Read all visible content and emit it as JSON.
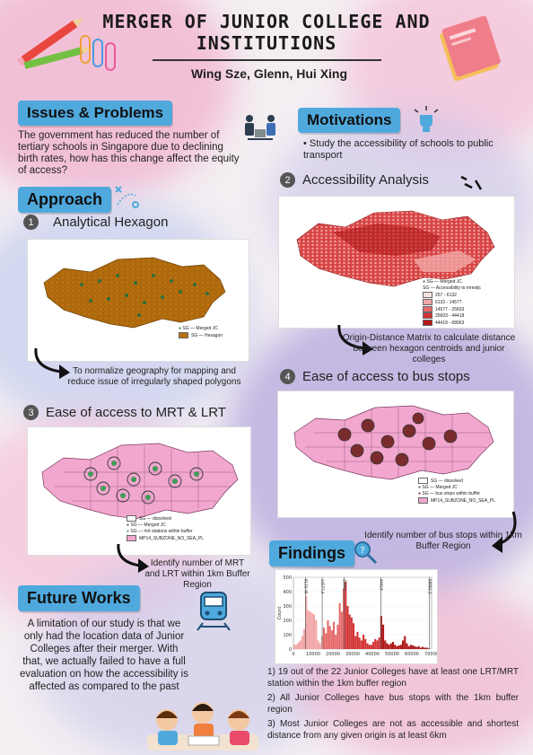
{
  "header": {
    "title": "MERGER OF JUNIOR COLLEGE AND INSTITUTIONS",
    "authors": "Wing Sze, Glenn, Hui Xing"
  },
  "issues": {
    "heading": "Issues & Problems",
    "body": "The government has reduced the number of tertiary schools in Singapore due to declining birth rates, how has this change affect the equity of access?"
  },
  "motivations": {
    "heading": "Motivations",
    "bullet": "Study the accessibility of schools to public transport"
  },
  "approach": {
    "heading": "Approach"
  },
  "steps": {
    "s1": {
      "num": "1",
      "label": "Analytical Hexagon",
      "caption": "To normalize geography for mapping and reduce issue of irregularly shaped polygons"
    },
    "s2": {
      "num": "2",
      "label": "Accessibility Analysis",
      "caption": "Origin-Distance Matrix to calculate distance between hexagon centroids and junior colleges"
    },
    "s3": {
      "num": "3",
      "label": "Ease of access to MRT & LRT",
      "caption": "Identify number of MRT and LRT within 1km Buffer Region"
    },
    "s4": {
      "num": "4",
      "label": "Ease of access to bus stops",
      "caption": "Identify number of bus stops within 1km Buffer Region"
    }
  },
  "legends": {
    "hex": {
      "merged": "SG — Merged JC",
      "hexagon": "SG — Hexagon"
    },
    "access": {
      "merged": "SG — Merged JC",
      "title": "SG — Accessibility to mrestjc",
      "classes": [
        "257 - 6132",
        "6132 - 14577",
        "14577 - 25603",
        "25603 - 44418",
        "44418 - 68963"
      ],
      "colors": [
        "#fbe3e3",
        "#f2a6a6",
        "#e56a6a",
        "#d33434",
        "#b01818"
      ]
    },
    "mrt": {
      "dissolved": "SG — dissolved",
      "merged": "SG — Merged JC",
      "stations": "SG — mrt stations within buffer",
      "subzone": "MP14_SUBZONE_NO_SEA_PL"
    },
    "bus": {
      "dissolved": "SG — dissolved",
      "merged": "SG — Merged JC",
      "stops": "SG — bus stops within buffer",
      "subzone": "MP14_SUBZONE_NO_SEA_PL"
    }
  },
  "findings": {
    "heading": "Findings",
    "items": [
      "1) 19 out of the 22 Junior Colleges have at least one LRT/MRT station within the 1km buffer region",
      "2) All Junior Colleges have bus stops with the 1km buffer region",
      "3) Most Junior Colleges are not as accessible and shortest distance from any given origin is at least 6km"
    ]
  },
  "future": {
    "heading": "Future Works",
    "body": "A limitation of our study is that we only had the location data of Junior Colleges after their merger. With that, we actually failed to have a full evaluation on how the accessibility is affected as compared to the past"
  },
  "chart_data": {
    "type": "bar",
    "ylabel": "Count",
    "xlim": [
      0,
      70000
    ],
    "ylim": [
      0,
      500
    ],
    "xticks": [
      0,
      10000,
      20000,
      30000,
      40000,
      50000,
      60000,
      70000
    ],
    "yticks": [
      0,
      100,
      200,
      300,
      400,
      500
    ],
    "breaks": [
      "6132.49",
      "14577.4",
      "25603",
      "44418",
      "68963.3"
    ],
    "break_values": [
      6132.49,
      14577.4,
      25603,
      44418,
      68963.3
    ],
    "bins": [
      {
        "x": 500,
        "v": 30
      },
      {
        "x": 1500,
        "v": 30
      },
      {
        "x": 2500,
        "v": 45
      },
      {
        "x": 3500,
        "v": 60
      },
      {
        "x": 4500,
        "v": 90
      },
      {
        "x": 5500,
        "v": 140
      },
      {
        "x": 6500,
        "v": 370
      },
      {
        "x": 7500,
        "v": 270
      },
      {
        "x": 8500,
        "v": 260
      },
      {
        "x": 9500,
        "v": 250
      },
      {
        "x": 10500,
        "v": 240
      },
      {
        "x": 11500,
        "v": 200
      },
      {
        "x": 12500,
        "v": 60
      },
      {
        "x": 13500,
        "v": 40
      },
      {
        "x": 14500,
        "v": 90
      },
      {
        "x": 15500,
        "v": 150
      },
      {
        "x": 16500,
        "v": 110
      },
      {
        "x": 17500,
        "v": 200
      },
      {
        "x": 18500,
        "v": 160
      },
      {
        "x": 19500,
        "v": 130
      },
      {
        "x": 20500,
        "v": 190
      },
      {
        "x": 21500,
        "v": 100
      },
      {
        "x": 22500,
        "v": 170
      },
      {
        "x": 23500,
        "v": 320
      },
      {
        "x": 24500,
        "v": 260
      },
      {
        "x": 25500,
        "v": 420
      },
      {
        "x": 26500,
        "v": 470
      },
      {
        "x": 27500,
        "v": 300
      },
      {
        "x": 28500,
        "v": 240
      },
      {
        "x": 29500,
        "v": 220
      },
      {
        "x": 30500,
        "v": 180
      },
      {
        "x": 31500,
        "v": 90
      },
      {
        "x": 32500,
        "v": 120
      },
      {
        "x": 33500,
        "v": 80
      },
      {
        "x": 34500,
        "v": 60
      },
      {
        "x": 35500,
        "v": 100
      },
      {
        "x": 36500,
        "v": 70
      },
      {
        "x": 37500,
        "v": 40
      },
      {
        "x": 38500,
        "v": 30
      },
      {
        "x": 39500,
        "v": 30
      },
      {
        "x": 40500,
        "v": 50
      },
      {
        "x": 41500,
        "v": 70
      },
      {
        "x": 42500,
        "v": 60
      },
      {
        "x": 43500,
        "v": 80
      },
      {
        "x": 44500,
        "v": 230
      },
      {
        "x": 45500,
        "v": 170
      },
      {
        "x": 46500,
        "v": 60
      },
      {
        "x": 47500,
        "v": 40
      },
      {
        "x": 48500,
        "v": 30
      },
      {
        "x": 49500,
        "v": 40
      },
      {
        "x": 50500,
        "v": 50
      },
      {
        "x": 51500,
        "v": 30
      },
      {
        "x": 52500,
        "v": 20
      },
      {
        "x": 53500,
        "v": 25
      },
      {
        "x": 54500,
        "v": 30
      },
      {
        "x": 55500,
        "v": 60
      },
      {
        "x": 56500,
        "v": 90
      },
      {
        "x": 57500,
        "v": 40
      },
      {
        "x": 58500,
        "v": 20
      },
      {
        "x": 59500,
        "v": 30
      },
      {
        "x": 60500,
        "v": 25
      },
      {
        "x": 61500,
        "v": 20
      },
      {
        "x": 62500,
        "v": 15
      },
      {
        "x": 63500,
        "v": 20
      },
      {
        "x": 64500,
        "v": 10
      },
      {
        "x": 65500,
        "v": 15
      },
      {
        "x": 66500,
        "v": 10
      },
      {
        "x": 67500,
        "v": 10
      },
      {
        "x": 68500,
        "v": 5
      }
    ]
  }
}
